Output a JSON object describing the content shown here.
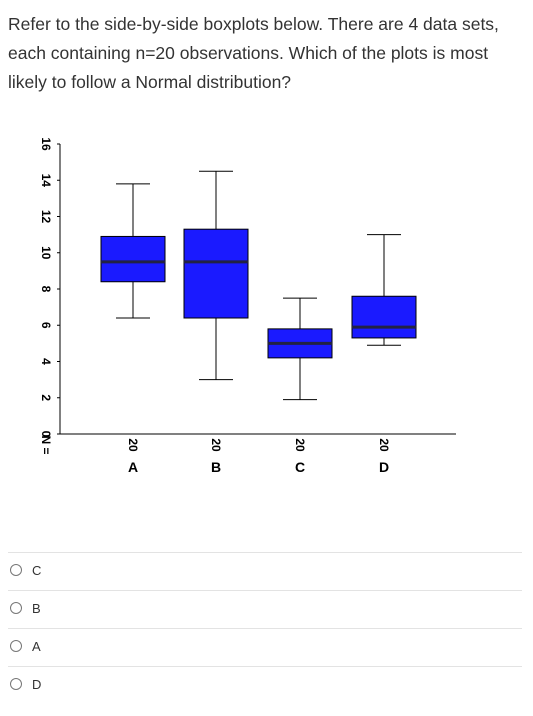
{
  "question": {
    "text": "Refer to the side-by-side boxplots below.  There are 4 data sets, each containing n=20 observations. Which of the plots is most likely to follow a Normal distribution?"
  },
  "chart_data": {
    "type": "boxplot",
    "y_ticks": [
      0,
      2,
      4,
      6,
      8,
      10,
      12,
      14,
      16
    ],
    "ylim": [
      0,
      16
    ],
    "n_label": "N =",
    "box_color": "#1a1aff",
    "series": [
      {
        "label": "A",
        "n": "20",
        "min": 6.4,
        "q1": 8.4,
        "median": 9.5,
        "q3": 10.9,
        "max": 13.8
      },
      {
        "label": "B",
        "n": "20",
        "min": 3.0,
        "q1": 6.4,
        "median": 9.5,
        "q3": 11.3,
        "max": 14.5
      },
      {
        "label": "C",
        "n": "20",
        "min": 1.9,
        "q1": 4.2,
        "median": 5.0,
        "q3": 5.8,
        "max": 7.5
      },
      {
        "label": "D",
        "n": "20",
        "min": 4.9,
        "q1": 5.3,
        "median": 5.9,
        "q3": 7.6,
        "max": 11.0
      }
    ]
  },
  "options": [
    {
      "label": "C"
    },
    {
      "label": "B"
    },
    {
      "label": "A"
    },
    {
      "label": "D"
    }
  ]
}
